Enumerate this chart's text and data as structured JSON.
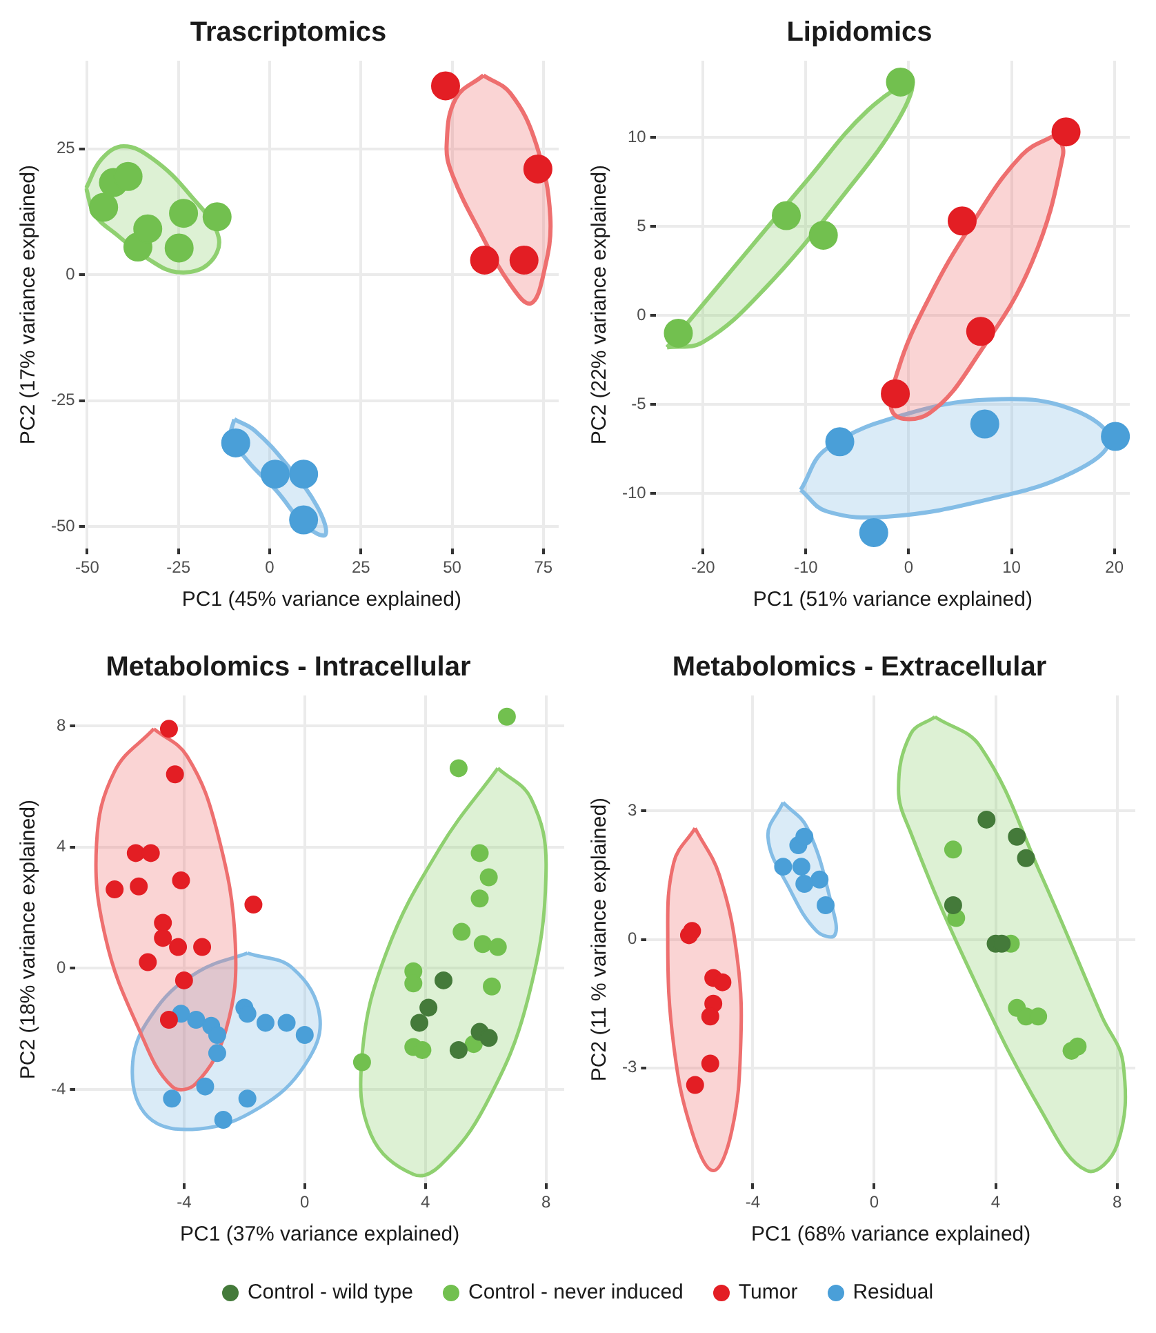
{
  "chart_data": [
    {
      "type": "scatter",
      "title": "Trascriptomics",
      "xlabel": "PC1 (45% variance explained)",
      "ylabel": "PC2 (17% variance explained)",
      "xlim": [
        -50.7,
        79.2
      ],
      "ylim": [
        -54.4,
        42.5
      ],
      "xticks": [
        -50,
        -25,
        0,
        25,
        50,
        75
      ],
      "yticks": [
        -50,
        -25,
        0,
        25
      ],
      "grid": true,
      "marker": "circle",
      "series": [
        {
          "type": "area",
          "marker": "none",
          "color": "#8fd070",
          "x": [
            -50.3,
            -46,
            -40,
            -32,
            -22,
            -14,
            -17,
            -25.2,
            -33,
            -42,
            -48,
            -50.3
          ],
          "values": [
            17.2,
            23,
            25.5,
            23,
            16,
            7.5,
            2,
            0.5,
            3,
            8,
            12,
            17.2
          ]
        },
        {
          "type": "area",
          "marker": "none",
          "color": "#ee6f6f",
          "x": [
            58.6,
            66,
            73,
            76.9,
            75,
            71.5,
            66,
            58,
            50,
            48.5,
            51,
            58.6
          ],
          "values": [
            39.6,
            36,
            26,
            11.5,
            0,
            -5.7,
            -2,
            8,
            20,
            25.8,
            35,
            39.6
          ]
        },
        {
          "type": "area",
          "marker": "none",
          "color": "#84bde6",
          "x": [
            -9.7,
            -4,
            5,
            13,
            15.3,
            10,
            2,
            -6,
            -10.5,
            -9.7
          ],
          "values": [
            -28.7,
            -31,
            -38,
            -46,
            -51.6,
            -50,
            -43,
            -37,
            -32,
            -28.7
          ]
        },
        {
          "color": "#72c04f",
          "x": [
            -45.5,
            -42.8,
            -38.8,
            -36.1,
            -33.4,
            -24.8,
            -23.6,
            -14.4
          ],
          "values": [
            13.4,
            18.3,
            19.5,
            5.5,
            9.1,
            5.3,
            12.2,
            11.5
          ]
        },
        {
          "color": "#e31e24",
          "x": [
            48.2,
            73.5,
            58.9,
            69.7
          ],
          "values": [
            37.5,
            21.0,
            2.9,
            2.9
          ]
        },
        {
          "color": "#4a9fd8",
          "x": [
            -9.3,
            1.5,
            9.3,
            9.3
          ],
          "values": [
            -33.4,
            -39.6,
            -39.6,
            -48.7
          ]
        }
      ]
    },
    {
      "type": "scatter",
      "title": "Lipidomics",
      "xlabel": "PC1 (51% variance explained)",
      "ylabel": "PC2 (22% variance explained)",
      "xlim": [
        -24.6,
        21.5
      ],
      "ylim": [
        -13.1,
        14.3
      ],
      "xticks": [
        -20,
        -10,
        0,
        10,
        20
      ],
      "yticks": [
        -10,
        -5,
        0,
        5,
        10
      ],
      "grid": true,
      "marker": "circle",
      "series": [
        {
          "type": "area",
          "marker": "none",
          "color": "#8fd070",
          "x": [
            -23.5,
            -18,
            -10,
            -4,
            0.2,
            -1,
            -6,
            -14,
            -20,
            -23.5
          ],
          "values": [
            -1.8,
            2,
            7.5,
            11.5,
            13,
            11,
            7,
            1.5,
            -1.5,
            -1.8
          ]
        },
        {
          "type": "area",
          "marker": "none",
          "color": "#ee6f6f",
          "x": [
            14.5,
            15,
            12,
            7,
            2,
            -1.5,
            -1,
            2,
            6,
            11,
            14.5
          ],
          "values": [
            10.2,
            9,
            3,
            -2,
            -5.5,
            -5.5,
            -3,
            1,
            5,
            9,
            10.2
          ]
        },
        {
          "type": "area",
          "marker": "none",
          "color": "#84bde6",
          "x": [
            -10.5,
            -8,
            0,
            9,
            16,
            19.5,
            16,
            8,
            -2,
            -8,
            -10.5
          ],
          "values": [
            -9.8,
            -7.5,
            -5.5,
            -4.7,
            -5.3,
            -7,
            -8.8,
            -10.3,
            -11.3,
            -11,
            -9.8
          ]
        },
        {
          "color": "#72c04f",
          "x": [
            -22.4,
            -11.9,
            -8.3,
            -0.8
          ],
          "values": [
            -1.0,
            5.6,
            4.5,
            13.1
          ]
        },
        {
          "color": "#e31e24",
          "x": [
            -1.3,
            5.2,
            7.0,
            15.3
          ],
          "values": [
            -4.4,
            5.3,
            -0.9,
            10.3
          ]
        },
        {
          "color": "#4a9fd8",
          "x": [
            -6.7,
            -3.4,
            7.4,
            20.1
          ],
          "values": [
            -7.1,
            -12.2,
            -6.1,
            -6.8
          ]
        }
      ]
    },
    {
      "type": "scatter",
      "title": "Metabolomics - Intracellular",
      "xlabel": "PC1 (37% variance explained)",
      "ylabel": "PC2 (18% variance explained)",
      "xlim": [
        -7.6,
        8.6
      ],
      "ylim": [
        -7.1,
        9.0
      ],
      "xticks": [
        -4,
        0,
        4,
        8
      ],
      "yticks": [
        -4,
        0,
        4,
        8
      ],
      "grid": true,
      "marker": "circle",
      "series": [
        {
          "type": "area",
          "marker": "none",
          "color": "#ee6f6f",
          "x": [
            -5,
            -3.9,
            -2.9,
            -2.3,
            -2.6,
            -3.6,
            -4.4,
            -5.5,
            -6.6,
            -6.9,
            -6.3,
            -5
          ],
          "values": [
            7.9,
            7,
            4.5,
            0.8,
            -2,
            -3.8,
            -3.9,
            -2,
            1,
            4.1,
            6.5,
            7.9
          ]
        },
        {
          "type": "area",
          "marker": "none",
          "color": "#84bde6",
          "x": [
            -1.9,
            -0.4,
            0.5,
            0,
            -1.5,
            -3.5,
            -5.2,
            -5.7,
            -4.9,
            -3.5,
            -1.9
          ],
          "values": [
            0.5,
            0,
            -1.6,
            -3.2,
            -4.6,
            -5.3,
            -4.9,
            -3.1,
            -1.3,
            -0.1,
            0.5
          ]
        },
        {
          "type": "area",
          "marker": "none",
          "color": "#8fd070",
          "x": [
            6.4,
            7.5,
            8.0,
            7.4,
            6,
            4.5,
            3.6,
            2.2,
            1.9,
            2.7,
            4.5,
            6.4
          ],
          "values": [
            6.6,
            5.6,
            3.3,
            -1,
            -4.5,
            -6.5,
            -6.8,
            -5.5,
            -2.9,
            0.5,
            4,
            6.6
          ]
        },
        {
          "color": "#447a3a",
          "x": [
            4.6,
            4.1,
            3.8,
            5.8,
            6.1,
            5.1
          ],
          "values": [
            -0.4,
            -1.3,
            -1.8,
            -2.1,
            -2.3,
            -2.7
          ]
        },
        {
          "color": "#72c04f",
          "x": [
            6.7,
            5.1,
            5.8,
            6.1,
            5.8,
            5.2,
            5.9,
            6.4,
            3.6,
            3.6,
            6.2,
            3.6,
            3.9,
            5.6,
            1.9
          ],
          "values": [
            8.3,
            6.6,
            3.8,
            3.0,
            2.3,
            1.2,
            0.8,
            0.7,
            -0.1,
            -0.5,
            -0.6,
            -2.6,
            -2.7,
            -2.5,
            -3.1
          ]
        },
        {
          "color": "#e31e24",
          "x": [
            -4.5,
            -4.3,
            -5.6,
            -5.1,
            -6.3,
            -5.5,
            -4.1,
            -1.7,
            -4.7,
            -4.7,
            -4.2,
            -3.4,
            -5.2,
            -4.0,
            -4.5
          ],
          "values": [
            7.9,
            6.4,
            3.8,
            3.8,
            2.6,
            2.7,
            2.9,
            2.1,
            1.5,
            1.0,
            0.7,
            0.7,
            0.2,
            -0.4,
            -1.7
          ]
        },
        {
          "color": "#4a9fd8",
          "x": [
            -4.1,
            -3.6,
            -3.1,
            -2.9,
            -2.9,
            -2.0,
            -1.9,
            -1.3,
            -0.6,
            0.0,
            -3.3,
            -4.4,
            -1.9,
            -2.7
          ],
          "values": [
            -1.5,
            -1.7,
            -1.9,
            -2.2,
            -2.8,
            -1.3,
            -1.5,
            -1.8,
            -1.8,
            -2.2,
            -3.9,
            -4.3,
            -4.3,
            -5.0
          ]
        }
      ]
    },
    {
      "type": "scatter",
      "title": "Metabolomics - Extracellular",
      "xlabel": "PC1 (68% variance explained)",
      "ylabel": "PC2 (11 % variance explained)",
      "xlim": [
        -7.5,
        8.6
      ],
      "ylim": [
        -5.7,
        5.7
      ],
      "xticks": [
        -4,
        0,
        4,
        8
      ],
      "yticks": [
        -3,
        0,
        3
      ],
      "grid": true,
      "marker": "circle",
      "legend": "bottom",
      "series": [
        {
          "type": "area",
          "marker": "none",
          "color": "#ee6f6f",
          "x": [
            -5.9,
            -5.1,
            -4.5,
            -4.4,
            -4.7,
            -5.3,
            -6,
            -6.6,
            -6.8,
            -6.6,
            -5.9
          ],
          "values": [
            2.6,
            1.5,
            -0.5,
            -2.5,
            -4.5,
            -5.4,
            -4.5,
            -2.5,
            0,
            1.8,
            2.6
          ]
        },
        {
          "type": "area",
          "marker": "none",
          "color": "#84bde6",
          "x": [
            -3.0,
            -2.2,
            -1.4,
            -1.3,
            -1.9,
            -2.8,
            -3.5,
            -3.0
          ],
          "values": [
            3.2,
            2.6,
            0.8,
            0.1,
            0.2,
            1.2,
            2.4,
            3.2
          ]
        },
        {
          "type": "area",
          "marker": "none",
          "color": "#8fd070",
          "x": [
            2,
            3.5,
            5.5,
            7.5,
            8.2,
            8,
            7,
            5.5,
            3,
            1.2,
            0.8,
            1.2,
            2
          ],
          "values": [
            5.2,
            4.5,
            1.5,
            -1.8,
            -2.9,
            -4.8,
            -5.4,
            -4,
            -0.5,
            2.5,
            3.5,
            4.8,
            5.2
          ]
        },
        {
          "name": "Control - wild type",
          "color": "#447a3a",
          "x": [
            3.7,
            4.7,
            5.0,
            2.6,
            4.0,
            4.2
          ],
          "values": [
            2.8,
            2.4,
            1.9,
            0.8,
            -0.1,
            -0.1
          ]
        },
        {
          "name": "Control - never induced",
          "color": "#72c04f",
          "x": [
            2.6,
            2.7,
            4.5,
            4.7,
            5.0,
            5.4,
            6.5,
            6.7
          ],
          "values": [
            2.1,
            0.5,
            -0.1,
            -1.6,
            -1.8,
            -1.8,
            -2.6,
            -2.5
          ]
        },
        {
          "name": "Tumor",
          "color": "#e31e24",
          "x": [
            -6.1,
            -6.0,
            -5.3,
            -5.0,
            -5.3,
            -5.4,
            -5.4,
            -5.9
          ],
          "values": [
            0.1,
            0.2,
            -0.9,
            -1.0,
            -1.5,
            -1.8,
            -2.9,
            -3.4
          ]
        },
        {
          "name": "Residual",
          "color": "#4a9fd8",
          "x": [
            -3.0,
            -2.5,
            -2.3,
            -2.4,
            -2.3,
            -1.8,
            -1.6
          ],
          "values": [
            1.7,
            2.2,
            2.4,
            1.7,
            1.3,
            1.4,
            0.8
          ]
        }
      ]
    }
  ]
}
